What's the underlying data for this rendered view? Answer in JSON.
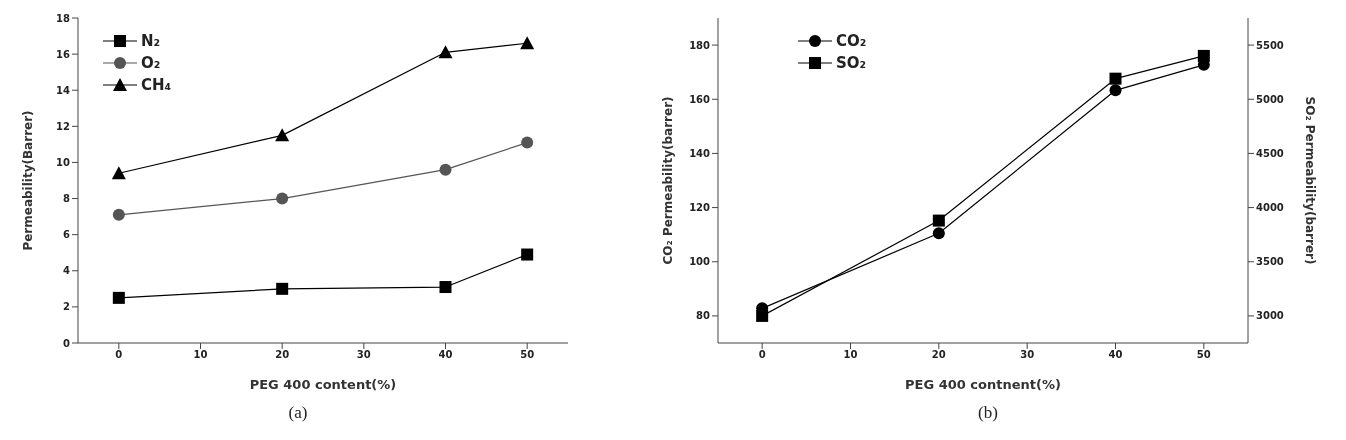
{
  "chart_data": [
    {
      "type": "line",
      "title": "(a)",
      "xlabel": "PEG 400 content(%)",
      "ylabel": "Permeability(Barrer)",
      "x": [
        0,
        20,
        40,
        50
      ],
      "xlim": [
        -5,
        55
      ],
      "xticks": [
        0,
        10,
        20,
        30,
        40,
        50
      ],
      "ylim": [
        0,
        18
      ],
      "yticks": [
        0,
        2,
        4,
        6,
        8,
        10,
        12,
        14,
        16,
        18
      ],
      "legend": "top left",
      "grid": false,
      "series": [
        {
          "name": "N₂",
          "color": "#000000",
          "marker": "square",
          "values": [
            2.5,
            3.0,
            3.1,
            4.9
          ]
        },
        {
          "name": "O₂",
          "color": "#555555",
          "marker": "circle",
          "values": [
            7.1,
            8.0,
            9.6,
            11.1
          ]
        },
        {
          "name": "CH₄",
          "color": "#000000",
          "marker": "triangle",
          "values": [
            9.4,
            11.5,
            16.1,
            16.6
          ]
        }
      ]
    },
    {
      "type": "line",
      "title": "(b)",
      "xlabel": "PEG 400 contnent(%)",
      "ylabel": "CO₂ Permeability(barrer)",
      "y2label": "SO₂ Permeability(barrer)",
      "x": [
        0,
        20,
        40,
        50
      ],
      "xlim": [
        -5,
        55
      ],
      "xticks": [
        0,
        10,
        20,
        30,
        40,
        50
      ],
      "ylim": [
        70,
        190
      ],
      "yticks": [
        80,
        100,
        120,
        140,
        160,
        180
      ],
      "y2lim": [
        2750,
        5750
      ],
      "y2ticks": [
        3000,
        3500,
        4000,
        4500,
        5000,
        5500
      ],
      "legend": "top left",
      "grid": false,
      "series": [
        {
          "name": "CO₂",
          "color": "#000000",
          "marker": "circle",
          "values": [
            82.8,
            110.5,
            163.3,
            172.7
          ]
        },
        {
          "name": "SO₂",
          "color": "#000000",
          "marker": "square",
          "axis": "y2",
          "values": [
            3000,
            3880,
            5190,
            5400
          ]
        }
      ]
    }
  ]
}
